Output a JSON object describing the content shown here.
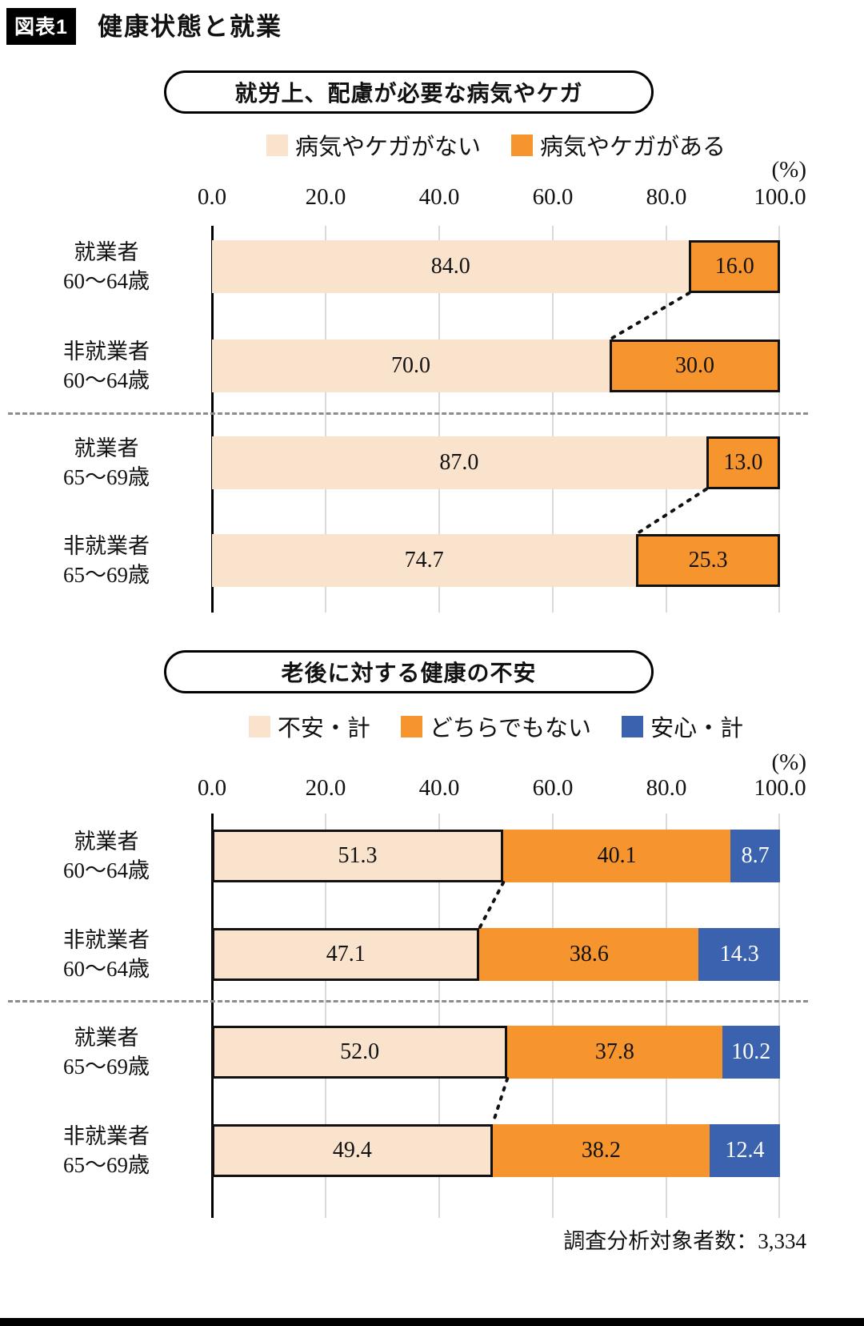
{
  "page": {
    "figure_tag": "図表1",
    "title": "健康状態と就業",
    "footer": "調査分析対象者数：3,334"
  },
  "colors": {
    "cream": "#FAE3CD",
    "orange": "#F6952D",
    "blue": "#3A62AE",
    "grid": "#D9D9D9"
  },
  "chart_data": [
    {
      "type": "bar",
      "orientation": "horizontal",
      "stacked": true,
      "grid": true,
      "legend_position": "top",
      "title": "就労上、配慮が必要な病気やケガ",
      "unit": "(%)",
      "xlim": [
        0,
        100
      ],
      "x_tick_labels": [
        "0.0",
        "20.0",
        "40.0",
        "60.0",
        "80.0",
        "100.0"
      ],
      "categories": [
        "就業者 60〜64歳",
        "非就業者 60〜64歳",
        "就業者 65〜69歳",
        "非就業者 65〜69歳"
      ],
      "category_lines": [
        [
          "就業者",
          "60〜64歳"
        ],
        [
          "非就業者",
          "60〜64歳"
        ],
        [
          "就業者",
          "65〜69歳"
        ],
        [
          "非就業者",
          "65〜69歳"
        ]
      ],
      "series": [
        {
          "name": "病気やケガがない",
          "color": "#FAE3CD",
          "values": [
            84.0,
            70.0,
            87.0,
            74.7
          ],
          "value_labels": [
            "84.0",
            "70.0",
            "87.0",
            "74.7"
          ]
        },
        {
          "name": "病気やケガがある",
          "color": "#F6952D",
          "values": [
            16.0,
            30.0,
            13.0,
            25.3
          ],
          "value_labels": [
            "16.0",
            "30.0",
            "13.0",
            "25.3"
          ]
        }
      ]
    },
    {
      "type": "bar",
      "orientation": "horizontal",
      "stacked": true,
      "grid": true,
      "legend_position": "top",
      "title": "老後に対する健康の不安",
      "unit": "(%)",
      "xlim": [
        0,
        100
      ],
      "x_tick_labels": [
        "0.0",
        "20.0",
        "40.0",
        "60.0",
        "80.0",
        "100.0"
      ],
      "categories": [
        "就業者 60〜64歳",
        "非就業者 60〜64歳",
        "就業者 65〜69歳",
        "非就業者 65〜69歳"
      ],
      "category_lines": [
        [
          "就業者",
          "60〜64歳"
        ],
        [
          "非就業者",
          "60〜64歳"
        ],
        [
          "就業者",
          "65〜69歳"
        ],
        [
          "非就業者",
          "65〜69歳"
        ]
      ],
      "series": [
        {
          "name": "不安・計",
          "color": "#FAE3CD",
          "values": [
            51.3,
            47.1,
            52.0,
            49.4
          ],
          "value_labels": [
            "51.3",
            "47.1",
            "52.0",
            "49.4"
          ]
        },
        {
          "name": "どちらでもない",
          "color": "#F6952D",
          "values": [
            40.1,
            38.6,
            37.8,
            38.2
          ],
          "value_labels": [
            "40.1",
            "38.6",
            "37.8",
            "38.2"
          ]
        },
        {
          "name": "安心・計",
          "color": "#3A62AE",
          "values": [
            8.7,
            14.3,
            10.2,
            12.4
          ],
          "value_labels": [
            "8.7",
            "14.3",
            "10.2",
            "12.4"
          ],
          "text_color": "#ffffff"
        }
      ]
    }
  ]
}
